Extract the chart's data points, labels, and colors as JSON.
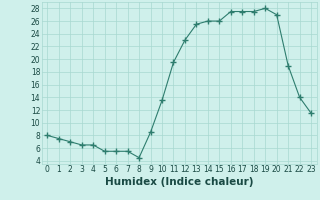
{
  "title": "",
  "xlabel": "Humidex (Indice chaleur)",
  "ylabel": "",
  "x": [
    0,
    1,
    2,
    3,
    4,
    5,
    6,
    7,
    8,
    9,
    10,
    11,
    12,
    13,
    14,
    15,
    16,
    17,
    18,
    19,
    20,
    21,
    22,
    23
  ],
  "y": [
    8,
    7.5,
    7,
    6.5,
    6.5,
    5.5,
    5.5,
    5.5,
    4.5,
    8.5,
    13.5,
    19.5,
    23,
    25.5,
    26,
    26,
    27.5,
    27.5,
    27.5,
    28,
    27,
    19,
    14,
    11.5
  ],
  "line_color": "#2e7d6e",
  "marker": "+",
  "marker_size": 4,
  "bg_color": "#cff0eb",
  "grid_color": "#a8d8d0",
  "xlim": [
    -0.5,
    23.5
  ],
  "ylim": [
    3.5,
    29
  ],
  "yticks": [
    4,
    6,
    8,
    10,
    12,
    14,
    16,
    18,
    20,
    22,
    24,
    26,
    28
  ],
  "xticks": [
    0,
    1,
    2,
    3,
    4,
    5,
    6,
    7,
    8,
    9,
    10,
    11,
    12,
    13,
    14,
    15,
    16,
    17,
    18,
    19,
    20,
    21,
    22,
    23
  ],
  "tick_fontsize": 5.5,
  "label_fontsize": 7.5,
  "tick_color": "#1a4a44",
  "label_color": "#1a4a44"
}
